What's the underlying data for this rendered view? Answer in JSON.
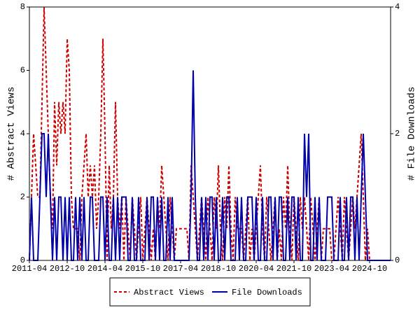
{
  "chart_data": {
    "type": "line",
    "x": [
      "2011-04",
      "2011-05",
      "2011-06",
      "2011-07",
      "2011-08",
      "2011-09",
      "2011-10",
      "2011-11",
      "2011-12",
      "2012-01",
      "2012-02",
      "2012-03",
      "2012-04",
      "2012-05",
      "2012-06",
      "2012-07",
      "2012-08",
      "2012-09",
      "2012-10",
      "2012-11",
      "2012-12",
      "2013-01",
      "2013-02",
      "2013-03",
      "2013-04",
      "2013-05",
      "2013-06",
      "2013-07",
      "2013-08",
      "2013-09",
      "2013-10",
      "2013-11",
      "2013-12",
      "2014-01",
      "2014-02",
      "2014-03",
      "2014-04",
      "2014-05",
      "2014-06",
      "2014-07",
      "2014-08",
      "2014-09",
      "2014-10",
      "2014-11",
      "2014-12",
      "2015-01",
      "2015-02",
      "2015-03",
      "2015-04",
      "2015-05",
      "2015-06",
      "2015-07",
      "2015-08",
      "2015-09",
      "2015-10",
      "2015-11",
      "2015-12",
      "2016-01",
      "2016-02",
      "2016-03",
      "2016-04",
      "2016-05",
      "2016-06",
      "2016-07",
      "2016-08",
      "2016-09",
      "2016-10",
      "2016-11",
      "2016-12",
      "2017-01",
      "2017-02",
      "2017-03",
      "2017-04",
      "2017-05",
      "2017-06",
      "2017-07",
      "2017-08",
      "2017-09",
      "2017-10",
      "2017-11",
      "2017-12",
      "2018-01",
      "2018-02",
      "2018-03",
      "2018-04",
      "2018-05",
      "2018-06",
      "2018-07",
      "2018-08",
      "2018-09",
      "2018-10",
      "2018-11",
      "2018-12",
      "2019-01",
      "2019-02",
      "2019-03",
      "2019-04",
      "2019-05",
      "2019-06",
      "2019-07",
      "2019-08",
      "2019-09",
      "2019-10",
      "2019-11",
      "2019-12",
      "2020-01",
      "2020-02",
      "2020-03",
      "2020-04",
      "2020-05",
      "2020-06",
      "2020-07",
      "2020-08",
      "2020-09",
      "2020-10",
      "2020-11",
      "2020-12",
      "2021-01",
      "2021-02",
      "2021-03",
      "2021-04",
      "2021-05",
      "2021-06",
      "2021-07",
      "2021-08",
      "2021-09",
      "2021-10",
      "2021-11",
      "2021-12",
      "2022-01",
      "2022-02",
      "2022-03",
      "2022-04",
      "2022-05",
      "2022-06",
      "2022-07",
      "2022-08",
      "2022-09",
      "2022-10",
      "2022-11",
      "2022-12",
      "2023-01",
      "2023-02",
      "2023-03",
      "2023-04",
      "2023-05",
      "2023-06",
      "2023-07",
      "2023-08",
      "2023-09",
      "2023-10",
      "2023-11",
      "2023-12",
      "2024-01",
      "2024-02",
      "2024-03",
      "2024-04",
      "2024-05",
      "2024-06",
      "2024-07",
      "2024-08",
      "2024-09",
      "2024-10",
      "2024-11",
      "2024-12",
      "2025-01",
      "2025-02",
      "2025-03",
      "2025-04",
      "2025-05",
      "2025-06",
      "2025-07",
      "2025-08"
    ],
    "xticks": [
      "2011-04",
      "2012-10",
      "2014-04",
      "2015-10",
      "2017-04",
      "2018-10",
      "2020-04",
      "2021-10",
      "2023-04",
      "2024-10"
    ],
    "ylabel": "# Abstract Views",
    "y2label": "# File Downloads",
    "ylim": [
      0,
      8
    ],
    "yticks": [
      0,
      2,
      4,
      6,
      8
    ],
    "y2lim": [
      0,
      4
    ],
    "y2ticks": [
      0,
      2,
      4
    ],
    "series": [
      {
        "name": "Abstract Views",
        "color": "#cc0000",
        "dash": true,
        "values": [
          0,
          2,
          4,
          3,
          2,
          2,
          5,
          8,
          6,
          4,
          2,
          1,
          5,
          3,
          5,
          4,
          5,
          4,
          7,
          6,
          2,
          1,
          1,
          1,
          0,
          2,
          3,
          4,
          2,
          3,
          2,
          3,
          1,
          2,
          4,
          7,
          4,
          0,
          3,
          1,
          2,
          5,
          2,
          1,
          2,
          0,
          2,
          1,
          0,
          2,
          1,
          0,
          1,
          2,
          0,
          1,
          2,
          1,
          0,
          1,
          0,
          2,
          1,
          3,
          2,
          1,
          0,
          2,
          1,
          0,
          1,
          1,
          1,
          1,
          1,
          1,
          0,
          3,
          2,
          1,
          0,
          1,
          2,
          1,
          0,
          2,
          1,
          0,
          2,
          1,
          3,
          1,
          0,
          2,
          1,
          3,
          1,
          0,
          2,
          1,
          1,
          1,
          0,
          1,
          2,
          0,
          1,
          0,
          1,
          2,
          3,
          1,
          0,
          2,
          1,
          0,
          1,
          2,
          0,
          1,
          0,
          2,
          1,
          3,
          1,
          0,
          2,
          1,
          0,
          2,
          1,
          2,
          1,
          0,
          2,
          1,
          0,
          1,
          2,
          0,
          1,
          1,
          1,
          1,
          0,
          0,
          1,
          2,
          1,
          0,
          2,
          1,
          0,
          1,
          2,
          1,
          2,
          3,
          4,
          2,
          0,
          1,
          0,
          0,
          0,
          0,
          0,
          0,
          0,
          0,
          0,
          0,
          0
        ]
      },
      {
        "name": "File Downloads",
        "color": "#0000aa",
        "axis": "y2",
        "values": [
          0,
          1,
          0,
          0,
          0,
          1,
          2,
          2,
          1,
          2,
          1,
          0,
          1,
          0,
          1,
          1,
          0,
          1,
          0,
          1,
          0,
          0,
          1,
          0,
          1,
          0,
          1,
          0,
          0,
          1,
          1,
          0,
          0,
          0,
          1,
          1,
          0,
          1,
          0,
          0,
          1,
          0,
          1,
          0,
          1,
          1,
          1,
          0,
          0,
          1,
          0,
          0,
          1,
          0,
          0,
          0,
          1,
          0,
          1,
          1,
          0,
          1,
          0,
          1,
          0,
          0,
          1,
          0,
          1,
          0,
          0,
          0,
          0,
          0,
          0,
          0,
          0,
          1,
          3,
          1,
          0,
          0,
          1,
          0,
          1,
          0,
          1,
          1,
          0,
          1,
          0,
          0,
          1,
          0,
          1,
          1,
          0,
          0,
          0,
          1,
          0,
          1,
          0,
          0,
          1,
          1,
          1,
          0,
          1,
          0,
          0,
          1,
          0,
          0,
          1,
          1,
          0,
          1,
          0,
          1,
          1,
          0,
          0,
          1,
          0,
          1,
          1,
          0,
          1,
          0,
          0,
          2,
          1,
          2,
          0,
          0,
          1,
          0,
          1,
          0,
          0,
          0,
          1,
          1,
          1,
          0,
          0,
          0,
          1,
          0,
          0,
          1,
          0,
          1,
          1,
          0,
          1,
          0,
          1,
          2,
          1,
          0,
          0,
          0,
          0,
          0,
          0,
          0,
          0,
          0,
          0,
          0,
          0
        ]
      }
    ]
  }
}
